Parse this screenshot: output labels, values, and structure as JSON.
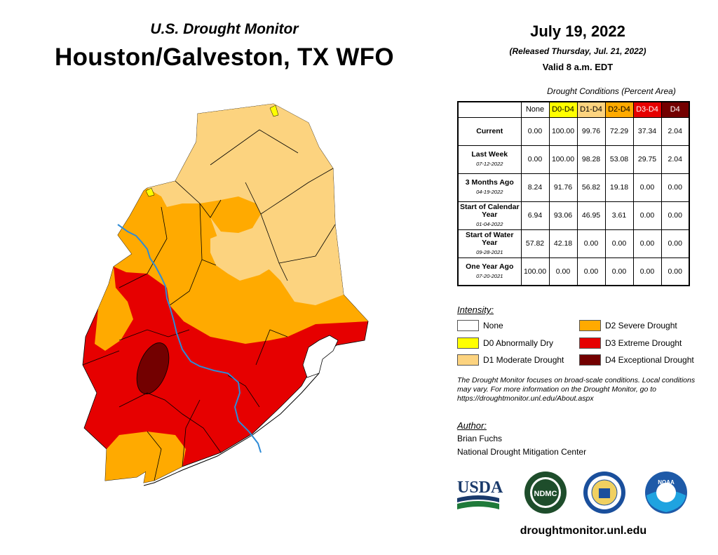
{
  "header": {
    "subtitle": "U.S. Drought Monitor",
    "title": "Houston/Galveston, TX WFO",
    "date": "July 19, 2022",
    "released": "(Released Thursday, Jul. 21, 2022)",
    "valid": "Valid 8 a.m. EDT"
  },
  "table": {
    "caption": "Drought Conditions (Percent Area)",
    "columns": [
      {
        "label": "None",
        "color": "#ffffff",
        "text_color": "#000000"
      },
      {
        "label": "D0-D4",
        "color": "#ffff00",
        "text_color": "#000000"
      },
      {
        "label": "D1-D4",
        "color": "#fcd37f",
        "text_color": "#000000"
      },
      {
        "label": "D2-D4",
        "color": "#ffaa00",
        "text_color": "#000000"
      },
      {
        "label": "D3-D4",
        "color": "#e60000",
        "text_color": "#ffffff"
      },
      {
        "label": "D4",
        "color": "#730000",
        "text_color": "#ffffff"
      }
    ],
    "rows": [
      {
        "label": "Current",
        "date": "",
        "values": [
          "0.00",
          "100.00",
          "99.76",
          "72.29",
          "37.34",
          "2.04"
        ]
      },
      {
        "label": "Last Week",
        "date": "07-12-2022",
        "values": [
          "0.00",
          "100.00",
          "98.28",
          "53.08",
          "29.75",
          "2.04"
        ]
      },
      {
        "label": "3 Months Ago",
        "date": "04-19-2022",
        "values": [
          "8.24",
          "91.76",
          "56.82",
          "19.18",
          "0.00",
          "0.00"
        ]
      },
      {
        "label": "Start of Calendar Year",
        "date": "01-04-2022",
        "values": [
          "6.94",
          "93.06",
          "46.95",
          "3.61",
          "0.00",
          "0.00"
        ]
      },
      {
        "label": "Start of Water Year",
        "date": "09-28-2021",
        "values": [
          "57.82",
          "42.18",
          "0.00",
          "0.00",
          "0.00",
          "0.00"
        ]
      },
      {
        "label": "One Year Ago",
        "date": "07-20-2021",
        "values": [
          "100.00",
          "0.00",
          "0.00",
          "0.00",
          "0.00",
          "0.00"
        ]
      }
    ]
  },
  "legend": {
    "title": "Intensity:",
    "items": [
      {
        "label": "None",
        "color": "#ffffff"
      },
      {
        "label": "D0 Abnormally Dry",
        "color": "#ffff00"
      },
      {
        "label": "D1 Moderate Drought",
        "color": "#fcd37f"
      },
      {
        "label": "D2 Severe Drought",
        "color": "#ffaa00"
      },
      {
        "label": "D3 Extreme Drought",
        "color": "#e60000"
      },
      {
        "label": "D4 Exceptional Drought",
        "color": "#730000"
      }
    ]
  },
  "note": "The Drought Monitor focuses on broad-scale conditions. Local conditions may vary. For more information on the Drought Monitor, go to https://droughtmonitor.unl.edu/About.aspx",
  "author": {
    "title": "Author:",
    "name": "Brian Fuchs",
    "org": "National Drought Mitigation Center"
  },
  "logos": {
    "usda": "USDA",
    "ndmc": "NDMC",
    "noaa": "NOAA"
  },
  "website": "droughtmonitor.unl.edu",
  "map_colors": {
    "d0": "#ffff00",
    "d1": "#fcd37f",
    "d2": "#ffaa00",
    "d3": "#e60000",
    "d4": "#730000",
    "river": "#2e8bd6"
  }
}
